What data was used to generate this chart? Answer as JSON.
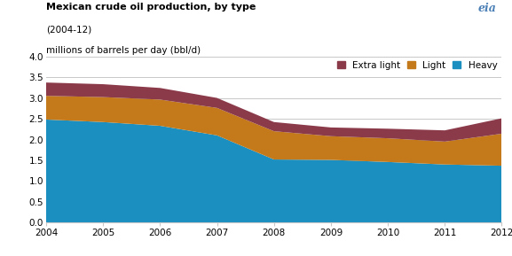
{
  "title_line1": "Mexican crude oil production, by type",
  "title_line2": "(2004-12)",
  "title_line3": "millions of barrels per day (bbl/d)",
  "years": [
    2004,
    2005,
    2006,
    2007,
    2008,
    2009,
    2010,
    2011,
    2012
  ],
  "heavy": [
    2.48,
    2.42,
    2.33,
    2.1,
    1.52,
    1.51,
    1.46,
    1.4,
    1.37
  ],
  "light": [
    0.57,
    0.6,
    0.63,
    0.66,
    0.68,
    0.57,
    0.57,
    0.55,
    0.77
  ],
  "extra_light": [
    0.32,
    0.31,
    0.28,
    0.24,
    0.22,
    0.21,
    0.23,
    0.27,
    0.37
  ],
  "color_heavy": "#1a8fc0",
  "color_light": "#c47a1a",
  "color_extra_light": "#8b3a4a",
  "ylim": [
    0.0,
    4.0
  ],
  "yticks": [
    0.0,
    0.5,
    1.0,
    1.5,
    2.0,
    2.5,
    3.0,
    3.5,
    4.0
  ],
  "legend_labels": [
    "Extra light",
    "Light",
    "Heavy"
  ],
  "legend_colors": [
    "#8b3a4a",
    "#c47a1a",
    "#1a8fc0"
  ],
  "background_color": "#ffffff",
  "grid_color": "#c8c8c8",
  "eia_logo_text": "eia"
}
